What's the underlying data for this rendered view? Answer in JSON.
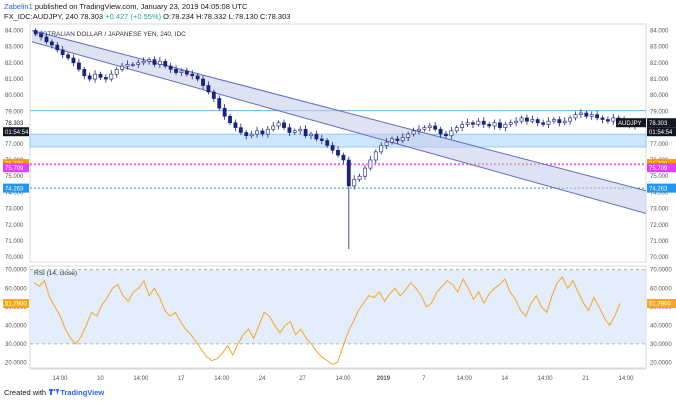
{
  "header": {
    "author": "Zabelin1",
    "published_text": "published on TradingView.com, January 23, 2019 04:05:08 UTC",
    "symbol": "FX_IDC:AUDJPY, 240",
    "ohlc": "78.303",
    "change": "+0.427 (+0.55%)",
    "o": "O:78.234",
    "h": "H:78.332",
    "l": "L:78.130",
    "c": "C:78.303"
  },
  "footer": {
    "created_with": "Created with",
    "brand": "TradingView"
  },
  "colors": {
    "up_candle": "#ffffff",
    "down_candle": "#1a237e",
    "channel": "#5c6bc0",
    "channel_fill": "#c5cae9",
    "zone_fill": "#bbdefb",
    "orange_level": "#ff9800",
    "magenta_level": "#e040fb",
    "blue_level": "#2196f3",
    "rsi_line": "#f5a623",
    "rsi_band_fill": "#dce8fa"
  },
  "chart_data": [
    {
      "type": "candlestick",
      "title": "AUSTRALIAN DOLLAR / JAPANESE YEN, 240, IDC",
      "y_ticks": [
        84.0,
        83.0,
        82.0,
        81.0,
        80.0,
        79.0,
        78.0,
        77.0,
        76.0,
        75.0,
        74.0,
        73.0,
        72.0,
        71.0,
        70.0
      ],
      "ylim": [
        69.7,
        84.4
      ],
      "x_ticks": [
        "14:00",
        "10",
        "14:00",
        "17",
        "14:00",
        "24",
        "27",
        "14:00",
        "2019",
        "7",
        "14:00",
        "14",
        "14:00",
        "21",
        "14:00"
      ],
      "price_labels": {
        "last": "78.303",
        "countdown": "01:54:54",
        "symbol_tag": "AUDJPY",
        "orange_level": "75.778",
        "magenta_level": "75.709",
        "blue_level": "74.263"
      },
      "levels": {
        "upper_line": 79.05,
        "zone_top": 77.6,
        "zone_bottom": 76.8,
        "orange": 75.778,
        "magenta": 75.709,
        "blue": 74.263
      },
      "channel": {
        "upper_start": 84.0,
        "upper_end": 74.1,
        "lower_start": 83.3,
        "lower_end": 72.7
      },
      "close_path": [
        83.8,
        83.6,
        83.3,
        83.1,
        82.8,
        82.5,
        82.3,
        82.0,
        81.6,
        81.2,
        81.0,
        81.3,
        81.1,
        81.0,
        81.3,
        81.6,
        81.8,
        81.9,
        81.9,
        82.0,
        82.1,
        82.2,
        81.9,
        82.1,
        81.8,
        81.6,
        81.4,
        81.5,
        81.3,
        81.2,
        81.0,
        80.6,
        80.2,
        79.8,
        79.2,
        78.7,
        78.3,
        78.0,
        77.7,
        77.5,
        77.6,
        77.8,
        77.6,
        77.9,
        78.1,
        78.3,
        78.0,
        77.7,
        77.8,
        77.9,
        77.5,
        77.6,
        77.3,
        77.2,
        76.9,
        76.6,
        76.3,
        76.0,
        74.4,
        74.8,
        75.0,
        75.5,
        76.0,
        76.5,
        76.9,
        77.1,
        77.3,
        77.2,
        77.4,
        77.6,
        77.8,
        77.9,
        78.0,
        78.1,
        77.9,
        77.6,
        77.5,
        77.8,
        78.0,
        78.2,
        78.3,
        78.2,
        78.4,
        78.2,
        78.1,
        78.3,
        78.0,
        78.2,
        78.3,
        78.4,
        78.6,
        78.4,
        78.5,
        78.3,
        78.2,
        78.4,
        78.5,
        78.3,
        78.4,
        78.6,
        78.8,
        78.9,
        78.7,
        78.8,
        78.6,
        78.5,
        78.4,
        78.6,
        78.5,
        78.3,
        78.1,
        78.2,
        78.3
      ],
      "flash_crash": {
        "index": 58,
        "low": 70.5
      }
    },
    {
      "type": "line",
      "title": "RSI (14, close)",
      "y_ticks": [
        70.0,
        60.0,
        50.0,
        40.0,
        30.0,
        20.0
      ],
      "ylim": [
        17,
        72
      ],
      "band": [
        30,
        70
      ],
      "last_value": 51.79,
      "last_label": "51.7900",
      "values": [
        63,
        61,
        64,
        55,
        50,
        45,
        38,
        33,
        30,
        34,
        40,
        47,
        45,
        51,
        55,
        60,
        62,
        56,
        53,
        58,
        60,
        64,
        56,
        60,
        55,
        48,
        45,
        47,
        42,
        38,
        35,
        31,
        27,
        23,
        21,
        22,
        25,
        29,
        24,
        30,
        35,
        38,
        33,
        40,
        47,
        45,
        40,
        36,
        40,
        42,
        35,
        38,
        33,
        30,
        26,
        23,
        21,
        19,
        20,
        28,
        36,
        42,
        48,
        52,
        56,
        55,
        58,
        53,
        57,
        60,
        56,
        59,
        63,
        60,
        56,
        50,
        52,
        58,
        61,
        64,
        62,
        58,
        65,
        60,
        54,
        58,
        52,
        57,
        60,
        62,
        65,
        58,
        54,
        48,
        45,
        52,
        56,
        50,
        47,
        56,
        63,
        66,
        60,
        64,
        58,
        52,
        48,
        55,
        50,
        44,
        40,
        45,
        51.79
      ]
    }
  ]
}
